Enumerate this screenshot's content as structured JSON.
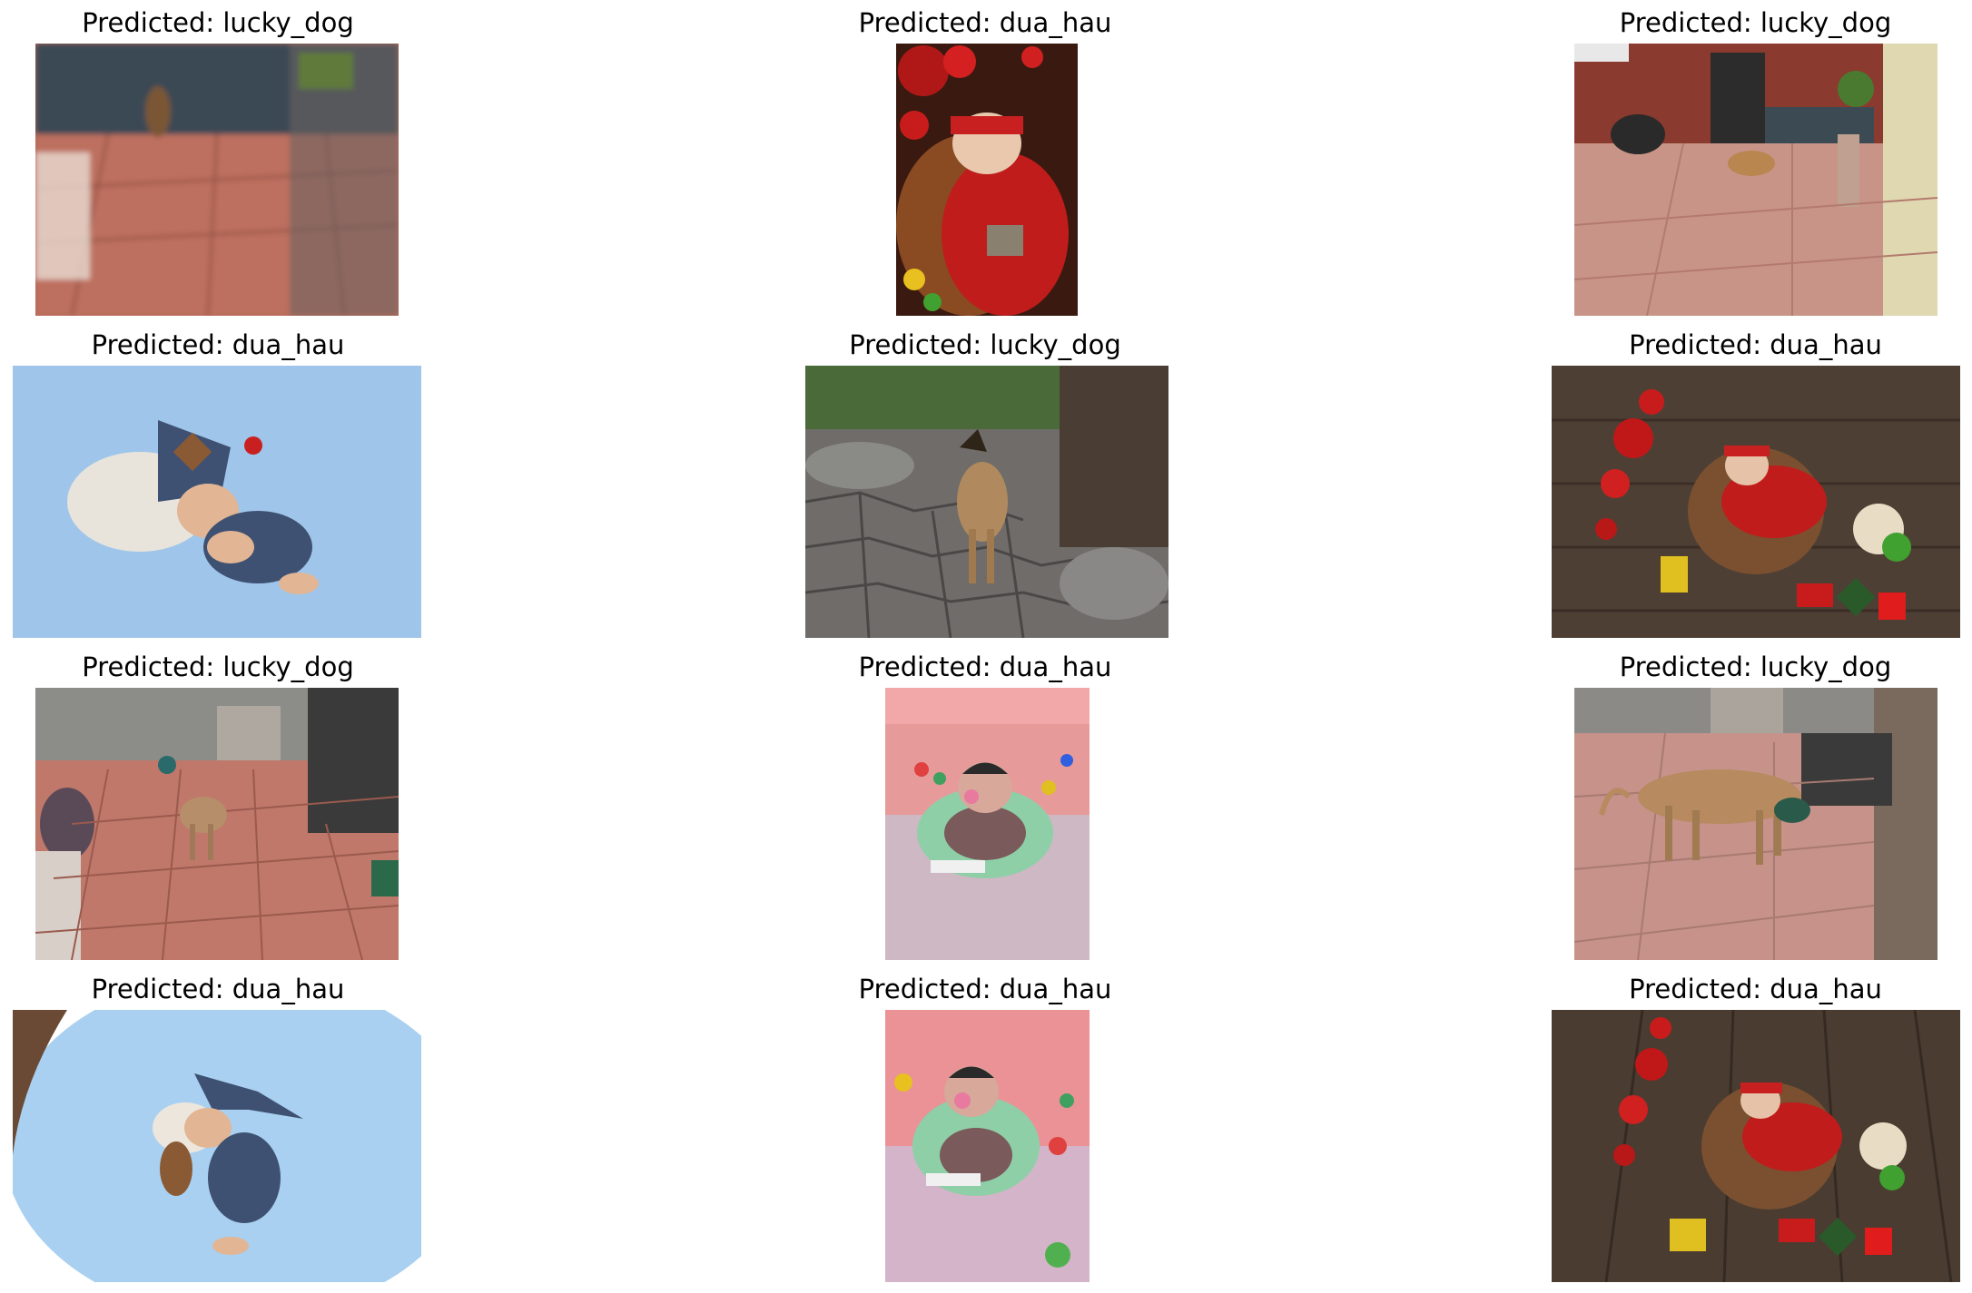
{
  "figure": {
    "panels": [
      {
        "caption": "Predicted: lucky_dog",
        "scene": "dog-tile-courtyard-blurry",
        "colors": {
          "bg": "#b86a5a",
          "accent": "#3a4a54"
        }
      },
      {
        "caption": "Predicted: dua_hau",
        "scene": "baby-red-outfit-basket",
        "colors": {
          "bg": "#7a2a18",
          "accent": "#c8201e"
        }
      },
      {
        "caption": "Predicted: lucky_dog",
        "scene": "dog-tile-courtyard-motorbike",
        "colors": {
          "bg": "#c99488",
          "accent": "#6b4a3a"
        }
      },
      {
        "caption": "Predicted: dua_hau",
        "scene": "baby-blue-backdrop-knit-hat",
        "colors": {
          "bg": "#9fc6ea",
          "accent": "#3e5172"
        }
      },
      {
        "caption": "Predicted: lucky_dog",
        "scene": "dog-stone-path",
        "colors": {
          "bg": "#6f6c69",
          "accent": "#b08a5e"
        }
      },
      {
        "caption": "Predicted: dua_hau",
        "scene": "baby-basket-wood-floor",
        "colors": {
          "bg": "#4e3f34",
          "accent": "#c8201e"
        }
      },
      {
        "caption": "Predicted: lucky_dog",
        "scene": "dog-tile-courtyard-pot",
        "colors": {
          "bg": "#c0786a",
          "accent": "#b68e6a"
        }
      },
      {
        "caption": "Predicted: dua_hau",
        "scene": "baby-bath-float",
        "colors": {
          "bg": "#e79a9a",
          "accent": "#8fcfa8"
        }
      },
      {
        "caption": "Predicted: lucky_dog",
        "scene": "dog-drinking-courtyard",
        "colors": {
          "bg": "#c6928a",
          "accent": "#b88a5f"
        }
      },
      {
        "caption": "Predicted: dua_hau",
        "scene": "baby-blue-backdrop-knit-hat",
        "colors": {
          "bg": "#a9d0f1",
          "accent": "#3e5172"
        }
      },
      {
        "caption": "Predicted: dua_hau",
        "scene": "baby-bath-float",
        "colors": {
          "bg": "#ea9296",
          "accent": "#8fcfa8"
        }
      },
      {
        "caption": "Predicted: dua_hau",
        "scene": "baby-basket-wood-floor",
        "colors": {
          "bg": "#4a3c31",
          "accent": "#c8201e"
        }
      }
    ]
  }
}
